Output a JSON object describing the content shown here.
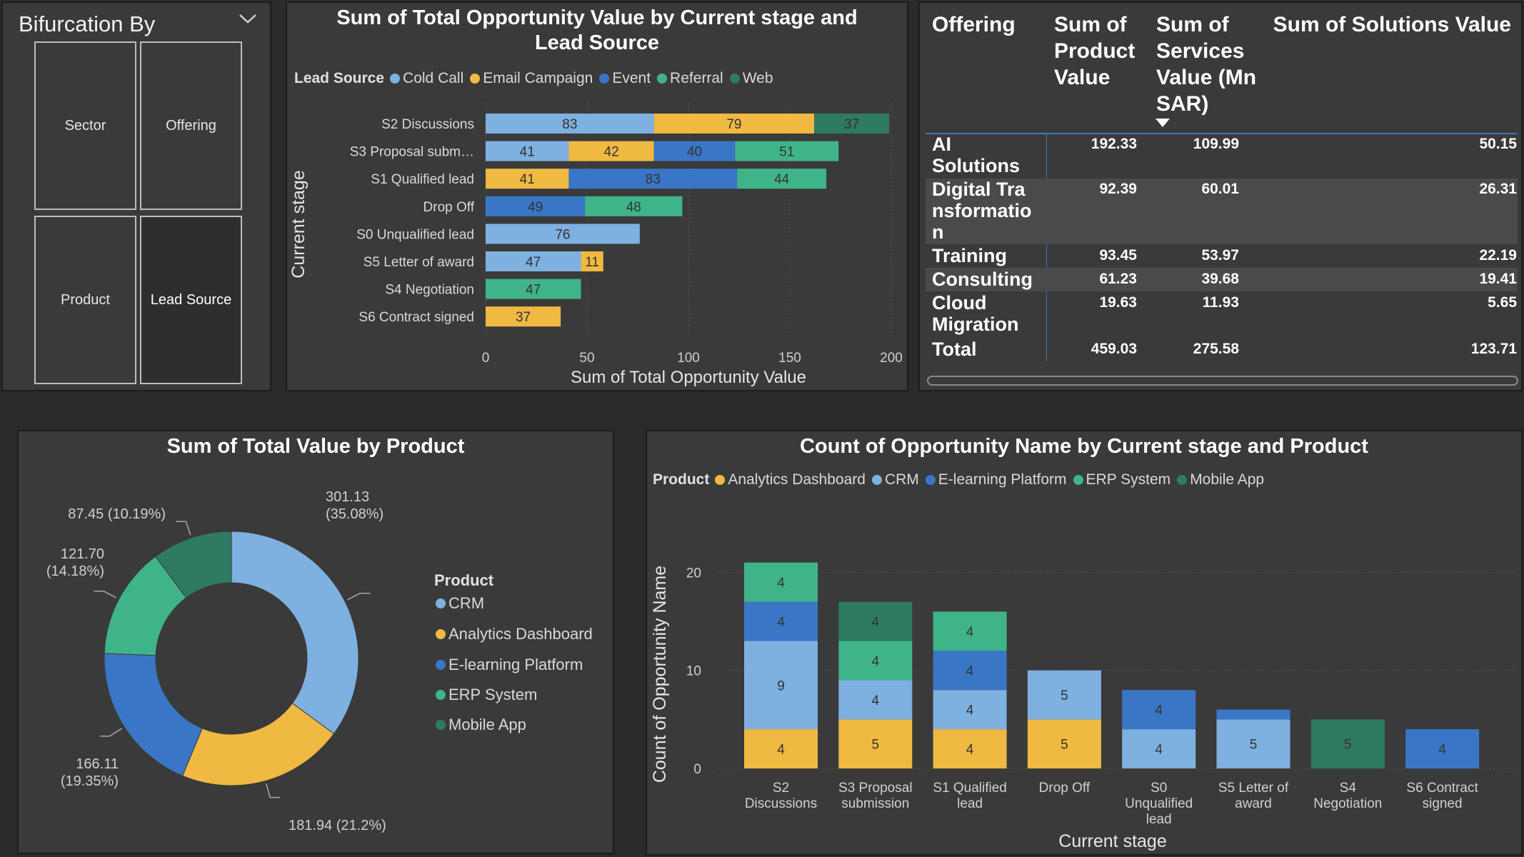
{
  "slicer": {
    "title": "Bifurcation By",
    "options": [
      "Sector",
      "Offering",
      "Product",
      "Lead Source"
    ],
    "selected": "Lead Source"
  },
  "colors": {
    "cold_call": "#7eb0e0",
    "email_campaign": "#f0b942",
    "event": "#3a76c6",
    "referral": "#40b489",
    "web": "#2f7a63",
    "panel_bg": "#3a3a3a",
    "page_bg": "#2b2b2b"
  },
  "table": {
    "headers": [
      "Offering",
      "Sum of Product Value",
      "Sum of Services Value (Mn SAR)",
      "Sum of Solutions Value"
    ],
    "sorted_column_icon": "sort-down-icon",
    "rows": [
      {
        "offering": "AI Solutions",
        "product": "192.33",
        "services": "109.99",
        "solutions": "50.15"
      },
      {
        "offering": "Digital Transformation",
        "product": "92.39",
        "services": "60.01",
        "solutions": "26.31"
      },
      {
        "offering": "Training",
        "product": "93.45",
        "services": "53.97",
        "solutions": "22.19"
      },
      {
        "offering": "Consulting",
        "product": "61.23",
        "services": "39.68",
        "solutions": "19.41"
      },
      {
        "offering": "Cloud Migration",
        "product": "19.63",
        "services": "11.93",
        "solutions": "5.65"
      }
    ],
    "total": {
      "offering": "Total",
      "product": "459.03",
      "services": "275.58",
      "solutions": "123.71"
    }
  },
  "chart_data": [
    {
      "type": "bar",
      "orientation": "horizontal",
      "stacked": true,
      "title": "Sum of Total Opportunity Value by Current stage and Lead Source",
      "xlabel": "Sum of Total Opportunity Value",
      "ylabel": "Current stage",
      "legend_title": "Lead Source",
      "legend_position": "top",
      "xlim": [
        0,
        200
      ],
      "xticks": [
        0,
        50,
        100,
        150,
        200
      ],
      "grid": true,
      "categories": [
        "S2 Discussions",
        "S3 Proposal subm…",
        "S1 Qualified lead",
        "Drop Off",
        "S0 Unqualified lead",
        "S5 Letter of award",
        "S4 Negotiation",
        "S6 Contract signed"
      ],
      "series": [
        {
          "name": "Cold Call",
          "color": "#7eb0e0",
          "values": [
            83,
            41,
            0,
            0,
            76,
            47,
            0,
            0
          ]
        },
        {
          "name": "Email Campaign",
          "color": "#f0b942",
          "values": [
            79,
            42,
            41,
            0,
            0,
            11,
            0,
            37
          ]
        },
        {
          "name": "Event",
          "color": "#3a76c6",
          "values": [
            0,
            40,
            83,
            49,
            0,
            0,
            0,
            0
          ]
        },
        {
          "name": "Referral",
          "color": "#40b489",
          "values": [
            0,
            51,
            44,
            48,
            0,
            0,
            47,
            0
          ]
        },
        {
          "name": "Web",
          "color": "#2f7a63",
          "values": [
            37,
            0,
            0,
            0,
            0,
            0,
            0,
            0
          ]
        }
      ]
    },
    {
      "type": "pie",
      "donut": true,
      "title": "Sum of Total Value by Product",
      "legend_title": "Product",
      "legend_position": "right",
      "categories": [
        "CRM",
        "Analytics Dashboard",
        "E-learning Platform",
        "ERP System",
        "Mobile App"
      ],
      "values": [
        301.13,
        181.94,
        166.11,
        121.7,
        87.45
      ],
      "colors": [
        "#7eb0e0",
        "#f0b942",
        "#3a76c6",
        "#40b489",
        "#2f7a63"
      ],
      "labels": [
        "301.13 (35.08%)",
        "181.94 (21.2%)",
        "166.11 (19.35%)",
        "121.70 (14.18%)",
        "87.45 (10.19%)"
      ]
    },
    {
      "type": "bar",
      "orientation": "vertical",
      "stacked": true,
      "title": "Count of Opportunity Name by Current stage and Product",
      "xlabel": "Current stage",
      "ylabel": "Count of Opportunity Name",
      "legend_title": "Product",
      "legend_position": "top",
      "ylim": [
        0,
        22
      ],
      "yticks": [
        0,
        10,
        20
      ],
      "grid": true,
      "categories": [
        "S2 Discussions",
        "S3 Proposal submission",
        "S1 Qualified lead",
        "Drop Off",
        "S0 Unqualified lead",
        "S5 Letter of award",
        "S4 Negotiation",
        "S6 Contract signed"
      ],
      "series": [
        {
          "name": "Analytics Dashboard",
          "color": "#f0b942",
          "values": [
            4,
            5,
            4,
            5,
            0,
            0,
            0,
            0
          ]
        },
        {
          "name": "CRM",
          "color": "#7eb0e0",
          "values": [
            9,
            4,
            4,
            5,
            4,
            5,
            0,
            0
          ]
        },
        {
          "name": "E-learning Platform",
          "color": "#3a76c6",
          "values": [
            4,
            0,
            4,
            0,
            4,
            1,
            0,
            4
          ]
        },
        {
          "name": "ERP System",
          "color": "#40b489",
          "values": [
            4,
            4,
            4,
            0,
            0,
            0,
            0,
            0
          ]
        },
        {
          "name": "Mobile App",
          "color": "#2f7a63",
          "values": [
            0,
            4,
            0,
            0,
            0,
            0,
            5,
            0
          ]
        }
      ]
    }
  ]
}
